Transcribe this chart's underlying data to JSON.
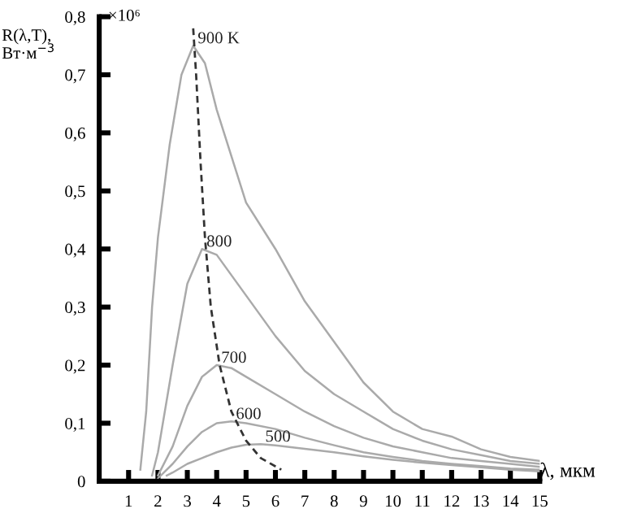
{
  "chart_data": {
    "type": "line",
    "ylabel": "R(λ,T),\nВт·м$^{−3}$",
    "xlabel": "λ, мкм",
    "annotations": [
      "×10⁶"
    ],
    "xlim": [
      0,
      15
    ],
    "ylim": [
      0,
      0.8
    ],
    "xticks": [
      1,
      2,
      3,
      4,
      5,
      6,
      7,
      8,
      9,
      10,
      11,
      12,
      13,
      14,
      15
    ],
    "yticks": [
      {
        "value": 0,
        "label": "0"
      },
      {
        "value": 0.1,
        "label": "0,1"
      },
      {
        "value": 0.2,
        "label": "0,2"
      },
      {
        "value": 0.3,
        "label": "0,3"
      },
      {
        "value": 0.4,
        "label": "0,4"
      },
      {
        "value": 0.5,
        "label": "0,5"
      },
      {
        "value": 0.6,
        "label": "0,6"
      },
      {
        "value": 0.7,
        "label": "0,7"
      },
      {
        "value": 0.8,
        "label": "0,8"
      }
    ],
    "grid": false,
    "legend": false,
    "marker": "none",
    "series": [
      {
        "name": "900 K",
        "color": "#aaaaaa",
        "line_style": "solid",
        "x": [
          1.4,
          1.6,
          1.8,
          2,
          2.4,
          2.8,
          3.2,
          3.6,
          4,
          5,
          6,
          7,
          8,
          9,
          10,
          11,
          12,
          13,
          14,
          15
        ],
        "values": [
          0.02,
          0.12,
          0.3,
          0.42,
          0.58,
          0.7,
          0.75,
          0.72,
          0.64,
          0.48,
          0.4,
          0.31,
          0.24,
          0.17,
          0.12,
          0.09,
          0.077,
          0.055,
          0.042,
          0.035
        ]
      },
      {
        "name": "800",
        "color": "#aaaaaa",
        "line_style": "solid",
        "x": [
          1.8,
          2,
          2.5,
          3,
          3.5,
          4,
          5,
          6,
          7,
          8,
          9,
          10,
          11,
          12,
          13,
          14,
          15
        ],
        "values": [
          0.01,
          0.05,
          0.2,
          0.34,
          0.4,
          0.39,
          0.32,
          0.25,
          0.19,
          0.15,
          0.12,
          0.09,
          0.07,
          0.055,
          0.045,
          0.035,
          0.03
        ]
      },
      {
        "name": "700",
        "color": "#aaaaaa",
        "line_style": "solid",
        "x": [
          2,
          2.5,
          3,
          3.5,
          4,
          4.5,
          5,
          6,
          7,
          8,
          9,
          10,
          11,
          12,
          13,
          14,
          15
        ],
        "values": [
          0.01,
          0.06,
          0.13,
          0.18,
          0.2,
          0.195,
          0.18,
          0.15,
          0.12,
          0.095,
          0.075,
          0.06,
          0.05,
          0.04,
          0.035,
          0.03,
          0.025
        ]
      },
      {
        "name": "600",
        "color": "#aaaaaa",
        "line_style": "solid",
        "x": [
          2,
          2.5,
          3,
          3.5,
          4,
          4.5,
          5,
          6,
          7,
          8,
          9,
          10,
          11,
          12,
          13,
          14,
          15
        ],
        "values": [
          0.005,
          0.03,
          0.06,
          0.085,
          0.1,
          0.103,
          0.1,
          0.09,
          0.075,
          0.062,
          0.05,
          0.042,
          0.035,
          0.03,
          0.026,
          0.022,
          0.02
        ]
      },
      {
        "name": "500",
        "color": "#aaaaaa",
        "line_style": "solid",
        "x": [
          2.3,
          2.5,
          3,
          3.5,
          4,
          4.5,
          5,
          5.5,
          6,
          7,
          8,
          9,
          10,
          11,
          12,
          13,
          14,
          15
        ],
        "values": [
          0.01,
          0.015,
          0.03,
          0.04,
          0.05,
          0.058,
          0.063,
          0.064,
          0.062,
          0.056,
          0.05,
          0.043,
          0.037,
          0.032,
          0.028,
          0.024,
          0.02,
          0.017
        ]
      },
      {
        "color": "#333333",
        "line_style": "dashed",
        "x": [
          3.2,
          3.3,
          3.45,
          3.6,
          3.8,
          4.1,
          4.5,
          5,
          5.5,
          6.2
        ],
        "values": [
          0.78,
          0.7,
          0.55,
          0.42,
          0.3,
          0.2,
          0.12,
          0.07,
          0.04,
          0.02
        ]
      }
    ]
  }
}
